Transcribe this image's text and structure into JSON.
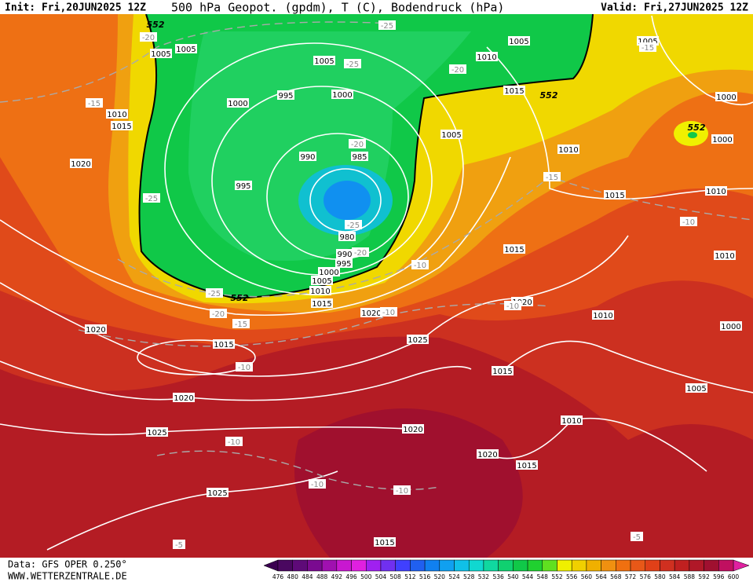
{
  "header": {
    "init": "Init: Fri,20JUN2025 12Z",
    "title": "500 hPa Geopot. (gpdm), T (C), Bodendruck (hPa)",
    "valid": "Valid: Fri,27JUN2025 12Z"
  },
  "footer": {
    "source": "Data: GFS OPER 0.250°",
    "website": "WWW.WETTERZENTRALE.DE"
  },
  "map": {
    "pressure_labels": [
      1005,
      1005,
      1010,
      1015,
      1020,
      1000,
      995,
      1005,
      1000,
      990,
      985,
      995,
      980,
      990,
      995,
      1000,
      1005,
      1010,
      1015,
      1020,
      1020,
      1015,
      1025,
      1020,
      1025,
      1025,
      1020,
      1020,
      1015,
      1015,
      1015,
      1010,
      1005,
      1010,
      1000,
      1020,
      1015,
      1010,
      1015,
      1010,
      1010,
      1000,
      1000,
      1005,
      1005,
      1010,
      1015,
      1005
    ],
    "temperature_labels": [
      -25,
      -20,
      -25,
      -20,
      -15,
      -25,
      -20,
      -25,
      -20,
      -15,
      -10,
      -10,
      -25,
      -20,
      -15,
      -10,
      -10,
      -10,
      -10,
      -10,
      -10,
      -5,
      -5,
      -15
    ],
    "height_labels": [
      552,
      552,
      552,
      552
    ]
  },
  "colorbar": {
    "ticks": [
      476,
      480,
      484,
      488,
      492,
      496,
      500,
      504,
      508,
      512,
      516,
      520,
      524,
      528,
      532,
      536,
      540,
      544,
      548,
      552,
      556,
      560,
      564,
      568,
      572,
      576,
      580,
      584,
      588,
      592,
      596,
      600
    ],
    "colors": [
      "#4a0860",
      "#5e0a78",
      "#7a0a90",
      "#a010b0",
      "#c818d0",
      "#e020e0",
      "#a020f0",
      "#7030f0",
      "#4040ff",
      "#2060f0",
      "#1080f0",
      "#10a0f0",
      "#10c0e8",
      "#10d8d0",
      "#10d8a0",
      "#10d070",
      "#10c848",
      "#20d030",
      "#60e020",
      "#f0f000",
      "#f0d000",
      "#f0b000",
      "#f09010",
      "#f07010",
      "#e85818",
      "#e04018",
      "#d03020",
      "#c02020",
      "#b01828",
      "#a01030",
      "#c01060"
    ],
    "low_color": "#3a0050",
    "high_color": "#e020a0"
  }
}
